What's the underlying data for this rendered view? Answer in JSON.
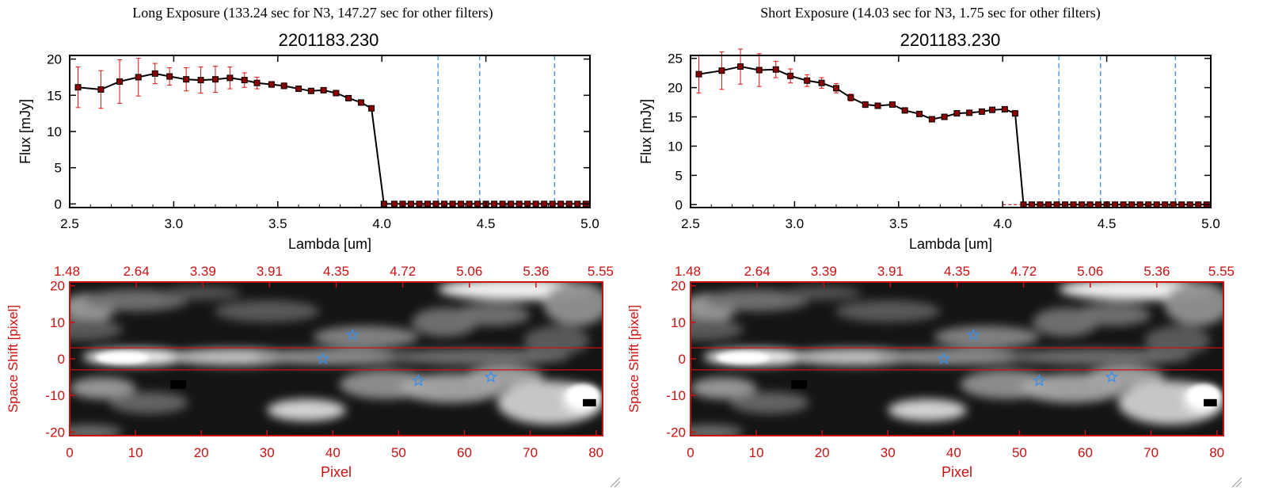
{
  "panels": [
    {
      "exposure_label": "Long Exposure (133.24 sec for N3, 147.27 sec for other filters)",
      "object_id": "2201183.230"
    },
    {
      "exposure_label": "Short Exposure (14.03 sec for N3, 1.75 sec for other filters)",
      "object_id": "2201183.230"
    }
  ],
  "chart_data": [
    {
      "type": "line",
      "title": "2201183.230",
      "xlabel": "Lambda [um]",
      "ylabel": "Flux [mJy]",
      "xlim": [
        2.5,
        5.0
      ],
      "ylim": [
        -0.5,
        20.5
      ],
      "xticks": [
        "2.5",
        "3.0",
        "3.5",
        "4.0",
        "4.5",
        "5.0"
      ],
      "yticks": [
        "0",
        "5",
        "10",
        "15",
        "20"
      ],
      "x": [
        2.54,
        2.65,
        2.74,
        2.83,
        2.91,
        2.98,
        3.06,
        3.13,
        3.2,
        3.27,
        3.34,
        3.4,
        3.47,
        3.53,
        3.6,
        3.66,
        3.72,
        3.78,
        3.84,
        3.9,
        3.95,
        4.01,
        4.06,
        4.1,
        4.14,
        4.18,
        4.22,
        4.26,
        4.3,
        4.34,
        4.38,
        4.42,
        4.46,
        4.5,
        4.54,
        4.58,
        4.62,
        4.66,
        4.7,
        4.74,
        4.78,
        4.82,
        4.86,
        4.9,
        4.94,
        4.98
      ],
      "values": [
        16.1,
        15.8,
        16.9,
        17.5,
        18.0,
        17.6,
        17.2,
        17.1,
        17.2,
        17.4,
        17.1,
        16.7,
        16.5,
        16.3,
        15.9,
        15.6,
        15.7,
        15.3,
        14.6,
        14.0,
        13.2,
        0,
        0,
        0,
        0,
        0,
        0,
        0,
        0,
        0,
        0,
        0,
        0,
        0,
        0,
        0,
        0,
        0,
        0,
        0,
        0,
        0,
        0,
        0,
        0,
        0
      ],
      "errors": [
        2.8,
        2.6,
        3.0,
        2.6,
        1.4,
        1.2,
        1.6,
        1.8,
        1.8,
        1.5,
        1.0,
        0.8,
        0.4,
        0.4,
        0.3,
        0.3,
        0.3,
        0.3,
        0.3,
        0.3,
        0.3,
        0,
        0,
        0,
        0,
        0,
        0,
        0,
        0,
        0,
        0,
        0,
        0,
        0,
        0,
        0,
        0,
        0,
        0,
        0,
        0,
        0,
        0,
        0,
        0,
        0
      ],
      "vlines": [
        4.27,
        4.47,
        4.83
      ],
      "line_color": "#000000",
      "marker_color": "#8b0000",
      "errorbar_color": "#e01010",
      "vline_color": "#3a8ee6",
      "grid": false
    },
    {
      "type": "line",
      "title": "2201183.230",
      "xlabel": "Lambda [um]",
      "ylabel": "Flux [mJy]",
      "xlim": [
        2.5,
        5.0
      ],
      "ylim": [
        -0.5,
        25.5
      ],
      "xticks": [
        "2.5",
        "3.0",
        "3.5",
        "4.0",
        "4.5",
        "5.0"
      ],
      "yticks": [
        "0",
        "5",
        "10",
        "15",
        "20",
        "25"
      ],
      "x": [
        2.54,
        2.65,
        2.74,
        2.83,
        2.91,
        2.98,
        3.06,
        3.13,
        3.2,
        3.27,
        3.34,
        3.4,
        3.47,
        3.53,
        3.6,
        3.66,
        3.72,
        3.78,
        3.84,
        3.9,
        3.95,
        4.01,
        4.06,
        4.1,
        4.14,
        4.18,
        4.22,
        4.26,
        4.3,
        4.34,
        4.38,
        4.42,
        4.46,
        4.5,
        4.54,
        4.58,
        4.62,
        4.66,
        4.7,
        4.74,
        4.78,
        4.82,
        4.86,
        4.9,
        4.94,
        4.98
      ],
      "values": [
        22.3,
        22.9,
        23.6,
        23.0,
        23.1,
        22.0,
        21.2,
        20.8,
        19.9,
        18.3,
        17.1,
        16.9,
        17.1,
        16.1,
        15.5,
        14.6,
        15.0,
        15.6,
        15.7,
        15.9,
        16.2,
        16.3,
        15.6,
        0,
        0,
        0,
        0,
        0,
        0,
        0,
        0,
        0,
        0,
        0,
        0,
        0,
        0,
        0,
        0,
        0,
        0,
        0,
        0,
        0,
        0,
        0
      ],
      "errors": [
        3.2,
        3.2,
        3.0,
        2.8,
        1.4,
        1.2,
        1.0,
        0.9,
        0.8,
        0.6,
        0.5,
        0.4,
        0.3,
        0.3,
        0.3,
        0.3,
        0.3,
        0.3,
        0.3,
        0.3,
        0.3,
        0.3,
        0.3,
        0,
        0,
        0,
        0,
        0,
        0,
        0,
        0,
        0,
        0,
        0,
        0,
        0,
        0,
        0,
        0,
        0,
        0,
        0,
        0,
        0,
        0,
        0
      ],
      "vlines": [
        4.27,
        4.47,
        4.83
      ],
      "line_color": "#000000",
      "marker_color": "#8b0000",
      "errorbar_color": "#e01010",
      "vline_color": "#3a8ee6",
      "grid": false
    },
    {
      "type": "heatmap",
      "xlabel": "Pixel",
      "ylabel": "Space Shift [pixel]",
      "top_axis_ticks": [
        "1.48",
        "2.64",
        "3.39",
        "3.91",
        "4.35",
        "4.72",
        "5.06",
        "5.36",
        "5.55"
      ],
      "xticks": [
        "0",
        "10",
        "20",
        "30",
        "40",
        "50",
        "60",
        "70",
        "80"
      ],
      "yticks": [
        "20",
        "10",
        "0",
        "-10",
        "-20"
      ],
      "xlim": [
        0,
        81
      ],
      "ylim": [
        -21,
        21
      ],
      "aperture_lines_y": [
        3,
        -3
      ],
      "star_markers": [
        [
          43,
          6.5
        ],
        [
          38.5,
          0
        ],
        [
          53,
          -6
        ],
        [
          64,
          -5
        ]
      ],
      "axis_color": "#cc1111",
      "star_color": "#3a8ee6"
    },
    {
      "type": "heatmap",
      "xlabel": "Pixel",
      "ylabel": "Space Shift [pixel]",
      "top_axis_ticks": [
        "1.48",
        "2.64",
        "3.39",
        "3.91",
        "4.35",
        "4.72",
        "5.06",
        "5.36",
        "5.55"
      ],
      "xticks": [
        "0",
        "10",
        "20",
        "30",
        "40",
        "50",
        "60",
        "70",
        "80"
      ],
      "yticks": [
        "20",
        "10",
        "0",
        "-10",
        "-20"
      ],
      "xlim": [
        0,
        81
      ],
      "ylim": [
        -21,
        21
      ],
      "aperture_lines_y": [
        3,
        -3
      ],
      "star_markers": [
        [
          43,
          6.5
        ],
        [
          38.5,
          0
        ],
        [
          53,
          -6
        ],
        [
          64,
          -5
        ]
      ],
      "axis_color": "#cc1111",
      "star_color": "#3a8ee6"
    }
  ]
}
